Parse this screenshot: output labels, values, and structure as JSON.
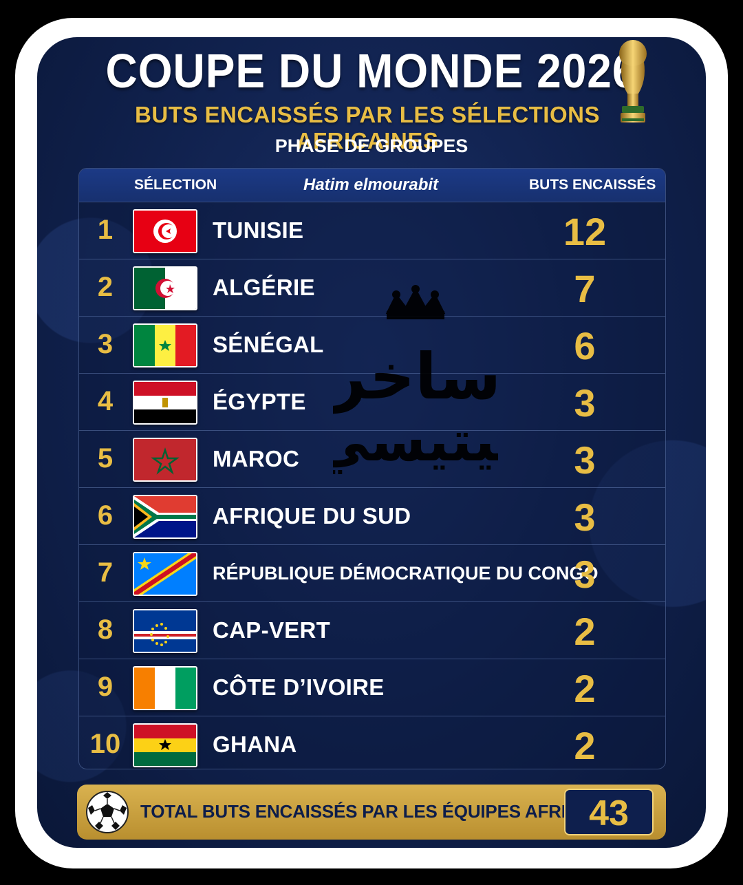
{
  "header": {
    "title": "COUPE DU MONDE 2026",
    "subtitle": "BUTS ENCAISSÉS PAR LES SÉLECTIONS AFRICAINES",
    "phase": "PHASE DE GROUPES"
  },
  "table": {
    "col_selection": "SÉLECTION",
    "author": "Hatim elmourabit",
    "col_goals": "BUTS ENCAISSÉS",
    "rows": [
      {
        "rank": "1",
        "country": "TUNISIE",
        "goals": "12",
        "flag": "tunisia-flag"
      },
      {
        "rank": "2",
        "country": "ALGÉRIE",
        "goals": "7",
        "flag": "algeria-flag"
      },
      {
        "rank": "3",
        "country": "SÉNÉGAL",
        "goals": "6",
        "flag": "senegal-flag"
      },
      {
        "rank": "4",
        "country": "ÉGYPTE",
        "goals": "3",
        "flag": "egypt-flag"
      },
      {
        "rank": "5",
        "country": "MAROC",
        "goals": "3",
        "flag": "morocco-flag"
      },
      {
        "rank": "6",
        "country": "AFRIQUE DU SUD",
        "goals": "3",
        "flag": "south-africa-flag"
      },
      {
        "rank": "7",
        "country": "RÉPUBLIQUE DÉMOCRATIQUE DU CONGO",
        "goals": "3",
        "flag": "dr-congo-flag"
      },
      {
        "rank": "8",
        "country": "CAP-VERT",
        "goals": "2",
        "flag": "cape-verde-flag"
      },
      {
        "rank": "9",
        "country": "CÔTE D’IVOIRE",
        "goals": "2",
        "flag": "ivory-coast-flag"
      },
      {
        "rank": "10",
        "country": "GHANA",
        "goals": "2",
        "flag": "ghana-flag"
      }
    ]
  },
  "footer": {
    "total_label": "TOTAL BUTS ENCAISSÉS PAR LES ÉQUIPES AFRICAINES :",
    "total_value": "43"
  },
  "watermark": {
    "text_line1": "ساخر",
    "text_line2": "بيتيسي"
  },
  "colors": {
    "background": "#10214d",
    "accent_gold": "#e8bd44",
    "header_row": "#1c3a86"
  }
}
